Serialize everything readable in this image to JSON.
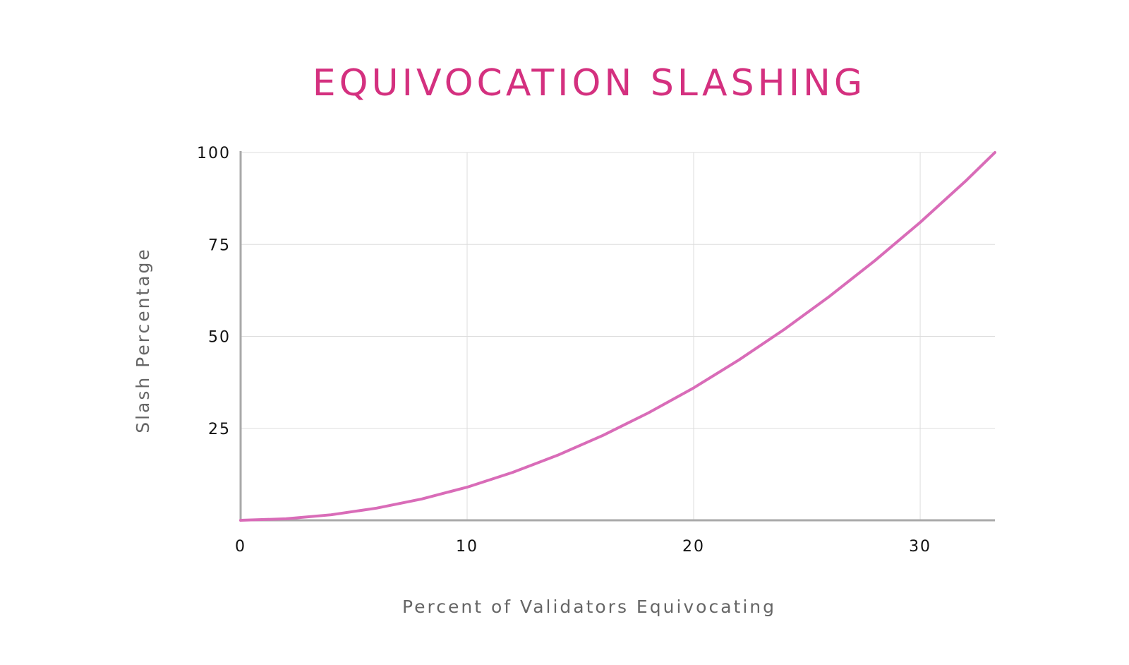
{
  "chart_data": {
    "type": "line",
    "title": "EQUIVOCATION SLASHING",
    "xlabel": "Percent of Validators Equivocating",
    "ylabel": "Slash Percentage",
    "xlim": [
      0,
      33.3
    ],
    "ylim": [
      0,
      100
    ],
    "x_ticks": [
      "0",
      "10",
      "20",
      "30"
    ],
    "y_ticks": [
      "25",
      "50",
      "75",
      "100"
    ],
    "grid": true,
    "legend": "none",
    "colors": {
      "title": "#d4307f",
      "line": "#d96cb8",
      "grid": "#dddddd",
      "axis": "#a9a9a9"
    },
    "series": [
      {
        "values_x": [
          0,
          2,
          4,
          6,
          8,
          10,
          12,
          14,
          16,
          18,
          20,
          22,
          24,
          26,
          28,
          30,
          32,
          33.3
        ],
        "values_y": [
          0,
          0.4,
          1.5,
          3.3,
          5.8,
          9,
          13,
          17.7,
          23.1,
          29.2,
          36,
          43.6,
          51.9,
          60.9,
          70.6,
          81,
          92.2,
          100
        ]
      }
    ]
  }
}
